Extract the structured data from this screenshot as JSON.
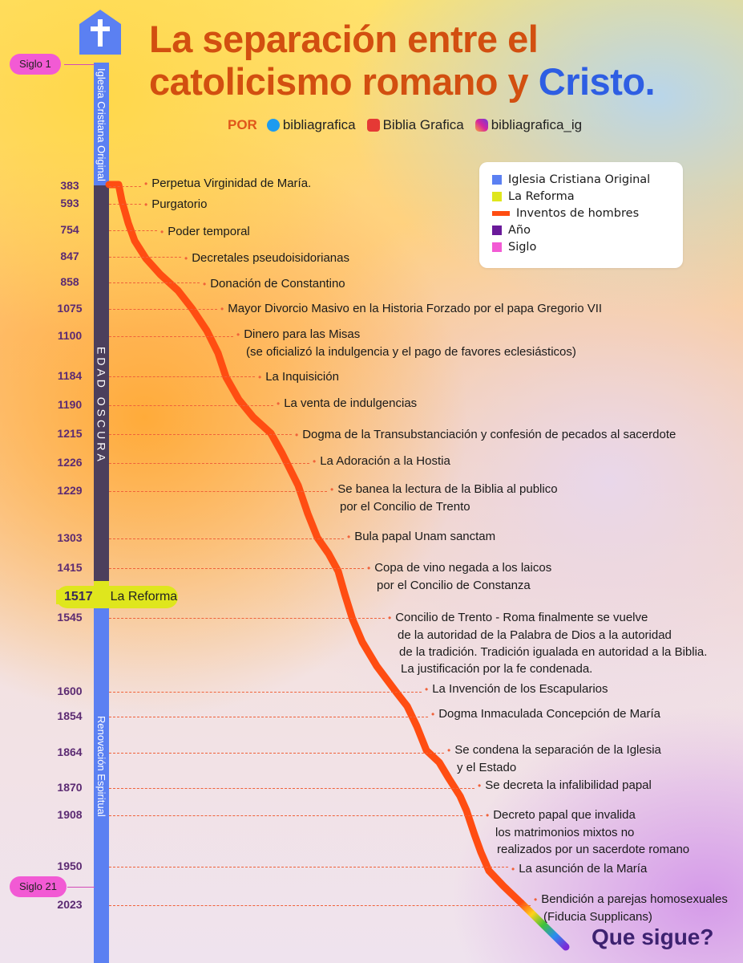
{
  "title": {
    "line1": "La separación entre el",
    "line2": "catolicismo romano y",
    "highlight": "Cristo."
  },
  "byline": {
    "por": "POR",
    "twitter": "bibliagrafica",
    "youtube": "Biblia Grafica",
    "instagram": "bibliagrafica_ig"
  },
  "timeline": {
    "labels": {
      "original": "Iglesia Cristiana Original",
      "dark": "EDAD OSCURA",
      "renov": "Renovación Espiritual"
    },
    "siglo_1": "Siglo 1",
    "siglo_21": "Siglo 21",
    "reforma": {
      "year": "1517",
      "label": "La Reforma"
    }
  },
  "legend": [
    {
      "label": "Iglesia Cristiana Original",
      "color": "#5b80f2"
    },
    {
      "label": "La Reforma",
      "color": "#dfe61d"
    },
    {
      "label": "Inventos de hombres",
      "color": "#ff4d12"
    },
    {
      "label": "Año",
      "color": "#6a1a9a"
    },
    {
      "label": "Siglo",
      "color": "#f25ad4"
    }
  ],
  "events": [
    {
      "year": "383",
      "lines": [
        "Perpetua Virginidad de María."
      ]
    },
    {
      "year": "593",
      "lines": [
        "Purgatorio"
      ]
    },
    {
      "year": "754",
      "lines": [
        "Poder temporal"
      ]
    },
    {
      "year": "847",
      "lines": [
        "Decretales pseudoisidorianas"
      ]
    },
    {
      "year": "858",
      "lines": [
        "Donación de Constantino"
      ]
    },
    {
      "year": "1075",
      "lines": [
        "Mayor Divorcio Masivo en la Historia Forzado por el papa Gregorio VII"
      ]
    },
    {
      "year": "1100",
      "lines": [
        "Dinero para las Misas",
        "(se oficializó la indulgencia y el pago de favores eclesiásticos)"
      ]
    },
    {
      "year": "1184",
      "lines": [
        "La Inquisición"
      ]
    },
    {
      "year": "1190",
      "lines": [
        "La venta de indulgencias"
      ]
    },
    {
      "year": "1215",
      "lines": [
        "Dogma de la Transubstanciación y confesión de pecados al sacerdote"
      ]
    },
    {
      "year": "1226",
      "lines": [
        "La Adoración a la Hostia"
      ]
    },
    {
      "year": "1229",
      "lines": [
        "Se banea la lectura de la Biblia al publico",
        "por el Concilio de Trento"
      ]
    },
    {
      "year": "1303",
      "lines": [
        "Bula papal Unam sanctam"
      ]
    },
    {
      "year": "1415",
      "lines": [
        "Copa de vino negada a los laicos",
        "por el Concilio de Constanza"
      ]
    },
    {
      "year": "1545",
      "lines": [
        "Concilio de Trento - Roma finalmente se vuelve",
        "de la autoridad de la Palabra de Dios a la autoridad",
        "de la tradición. Tradición igualada en autoridad a la Biblia.",
        "La justificación por la fe condenada."
      ]
    },
    {
      "year": "1600",
      "lines": [
        "La Invención de los Escapularios"
      ]
    },
    {
      "year": "1854",
      "lines": [
        "Dogma Inmaculada Concepción de María"
      ]
    },
    {
      "year": "1864",
      "lines": [
        "Se condena la separación de la Iglesia",
        "y el Estado"
      ]
    },
    {
      "year": "1870",
      "lines": [
        "Se decreta la infalibilidad papal"
      ]
    },
    {
      "year": "1908",
      "lines": [
        "Decreto papal que invalida",
        "los matrimonios mixtos no",
        "realizados por un sacerdote romano"
      ]
    },
    {
      "year": "1950",
      "lines": [
        "La asunción de la María"
      ]
    },
    {
      "year": "2023",
      "lines": [
        "Bendición a parejas homosexuales",
        "(Fiducia Supplicans)"
      ]
    }
  ],
  "closing": "Que sigue?"
}
